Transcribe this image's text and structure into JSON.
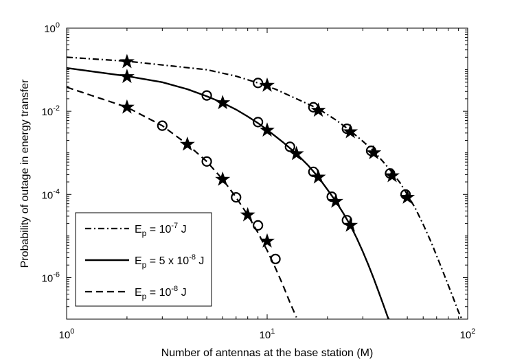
{
  "chart_data": {
    "type": "line",
    "title": "",
    "xlabel": "Number of antennas at the base station (M)",
    "ylabel": "Probability of outage in energy transfer",
    "xscale": "log",
    "yscale": "log",
    "xlim": [
      1,
      100
    ],
    "ylim": [
      1e-07,
      1
    ],
    "x_ticks": [
      {
        "value": 1,
        "base": "10",
        "exp": "0"
      },
      {
        "value": 10,
        "base": "10",
        "exp": "1"
      },
      {
        "value": 100,
        "base": "10",
        "exp": "2"
      }
    ],
    "y_ticks": [
      {
        "value": 1,
        "base": "10",
        "exp": "0"
      },
      {
        "value": 0.01,
        "base": "10",
        "exp": "-2"
      },
      {
        "value": 0.0001,
        "base": "10",
        "exp": "-4"
      },
      {
        "value": 1e-06,
        "base": "10",
        "exp": "-6"
      }
    ],
    "grid": false,
    "legend_position": "bottom-left",
    "series": [
      {
        "legend": {
          "pre": "E",
          "sub": "p",
          "mid": " = 10",
          "sup": "-7",
          "post": " J"
        },
        "line_style": "dashdot",
        "color": "#000000",
        "x": [
          1,
          2,
          3,
          5,
          7,
          9,
          11,
          14,
          18,
          22,
          26,
          30,
          34,
          38,
          42,
          46,
          50,
          55,
          60,
          66,
          72,
          78,
          84,
          90,
          95
        ],
        "y": [
          0.2,
          0.16,
          0.13,
          0.1,
          0.07,
          0.048,
          0.034,
          0.02,
          0.0115,
          0.0062,
          0.0034,
          0.0019,
          0.0011,
          0.0006,
          0.00034,
          0.00019,
          0.0001,
          4.5e-05,
          1.9e-05,
          6.8e-06,
          2.4e-06,
          9e-07,
          3.6e-07,
          1.5e-07,
          8.5e-08
        ],
        "star_markers": {
          "x": [
            2,
            10,
            18,
            26,
            34,
            42,
            50
          ],
          "y": [
            0.155,
            0.042,
            0.0105,
            0.0032,
            0.001,
            0.00028,
            8.5e-05
          ]
        },
        "circle_markers": {
          "x": [
            9,
            17,
            25,
            33,
            41,
            49
          ],
          "y": [
            0.048,
            0.0125,
            0.0038,
            0.00112,
            0.00032,
            0.0001
          ]
        }
      },
      {
        "legend": {
          "pre": "E",
          "sub": "p",
          "mid": " = 5 x 10",
          "sup": "-8",
          "post": " J"
        },
        "line_style": "solid",
        "color": "#000000",
        "x": [
          1,
          2,
          3,
          4,
          5,
          6,
          7,
          8,
          9,
          10,
          12,
          14,
          16,
          18,
          20,
          22,
          24,
          26,
          28,
          30,
          32,
          34,
          36,
          38,
          40,
          41
        ],
        "y": [
          0.11,
          0.07,
          0.05,
          0.034,
          0.023,
          0.016,
          0.011,
          0.0075,
          0.0052,
          0.0036,
          0.0018,
          0.00095,
          0.0005,
          0.00026,
          0.00013,
          6.8e-05,
          3.5e-05,
          1.8e-05,
          8.8e-06,
          4.2e-06,
          2e-06,
          9.5e-07,
          4.5e-07,
          2.2e-07,
          1.1e-07,
          9e-08
        ],
        "star_markers": {
          "x": [
            2,
            6,
            10,
            14,
            18,
            22,
            26
          ],
          "y": [
            0.068,
            0.016,
            0.0035,
            0.00095,
            0.00026,
            6.8e-05,
            1.8e-05
          ]
        },
        "circle_markers": {
          "x": [
            5,
            9,
            13,
            17,
            21,
            25
          ],
          "y": [
            0.024,
            0.0055,
            0.0014,
            0.00035,
            8.8e-05,
            2.4e-05
          ]
        }
      },
      {
        "legend": {
          "pre": "E",
          "sub": "p",
          "mid": " = 10",
          "sup": "-8",
          "post": " J"
        },
        "line_style": "dashed",
        "color": "#000000",
        "x": [
          1,
          2,
          3,
          4,
          5,
          6,
          7,
          8,
          9,
          10,
          11,
          12,
          13,
          14
        ],
        "y": [
          0.038,
          0.0125,
          0.0045,
          0.0016,
          0.00062,
          0.00023,
          8.5e-05,
          3.2e-05,
          1.2e-05,
          4.5e-06,
          1.7e-06,
          6.5e-07,
          2.5e-07,
          1.1e-07
        ],
        "star_markers": {
          "x": [
            2,
            4,
            6,
            8,
            10
          ],
          "y": [
            0.0125,
            0.0016,
            0.00023,
            3.2e-05,
            7.5e-06
          ]
        },
        "circle_markers": {
          "x": [
            3,
            5,
            7,
            9,
            11
          ],
          "y": [
            0.0045,
            0.00062,
            8.5e-05,
            1.8e-05,
            2.8e-06
          ]
        }
      }
    ]
  }
}
